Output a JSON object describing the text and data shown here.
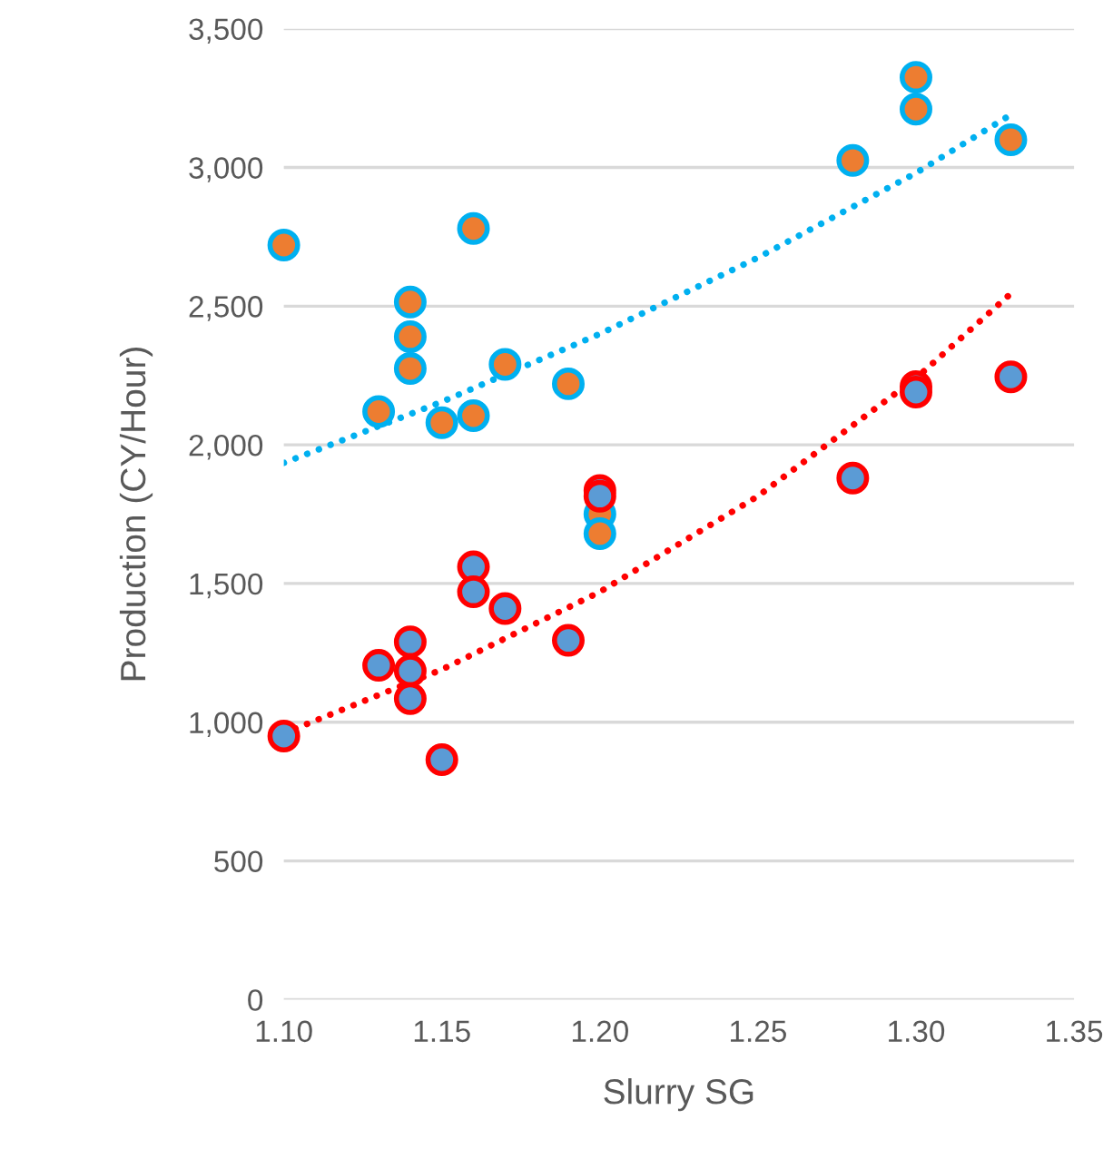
{
  "chart_data": {
    "type": "scatter",
    "xlabel": "Slurry SG",
    "ylabel": "Production (CY/Hour)",
    "xlim": [
      1.1,
      1.35
    ],
    "xticks": [
      {
        "value": 1.1,
        "label": "1.10"
      },
      {
        "value": 1.15,
        "label": "1.15"
      },
      {
        "value": 1.2,
        "label": "1.20"
      },
      {
        "value": 1.25,
        "label": "1.25"
      },
      {
        "value": 1.3,
        "label": "1.30"
      },
      {
        "value": 1.35,
        "label": "1.35"
      }
    ],
    "ylim": [
      0,
      3500
    ],
    "yticks": [
      0,
      500,
      {
        "value": 1000,
        "label": "1,000"
      },
      {
        "value": 1500,
        "label": "1,500"
      },
      {
        "value": 2000,
        "label": "2,000"
      },
      {
        "value": 2500,
        "label": "2,500"
      },
      {
        "value": 3000,
        "label": "3,000"
      },
      {
        "value": 3500,
        "label": "3,500"
      }
    ],
    "grid": "y",
    "series": [
      {
        "marker": "circle",
        "color": "#ed7d31",
        "x": [
          1.1,
          1.13,
          1.14,
          1.14,
          1.14,
          1.15,
          1.16,
          1.16,
          1.17,
          1.19,
          1.2,
          1.2,
          1.28,
          1.3,
          1.3,
          1.33
        ],
        "values": [
          2720,
          2120,
          2515,
          2390,
          2275,
          2080,
          2780,
          2105,
          2290,
          2220,
          1750,
          1680,
          3025,
          3325,
          3210,
          3100
        ]
      },
      {
        "marker": "circle",
        "color": "#5b9bd5",
        "x": [
          1.1,
          1.13,
          1.14,
          1.14,
          1.14,
          1.15,
          1.16,
          1.16,
          1.17,
          1.19,
          1.2,
          1.2,
          1.28,
          1.3,
          1.3,
          1.33
        ],
        "values": [
          950,
          1205,
          1290,
          1185,
          1085,
          865,
          1560,
          1470,
          1410,
          1295,
          1835,
          1815,
          1880,
          2210,
          2190,
          2245
        ]
      },
      {
        "type": "line",
        "color": "#00b0f0",
        "line_style": "dotted",
        "x": [
          1.1,
          1.15,
          1.2,
          1.25,
          1.3,
          1.33
        ],
        "values": [
          1935,
          2155,
          2400,
          2675,
          2980,
          3190
        ]
      },
      {
        "type": "line",
        "color": "#ff0000",
        "line_style": "dotted",
        "x": [
          1.1,
          1.15,
          1.2,
          1.25,
          1.3,
          1.33
        ],
        "values": [
          960,
          1190,
          1470,
          1815,
          2240,
          2545
        ]
      }
    ]
  }
}
